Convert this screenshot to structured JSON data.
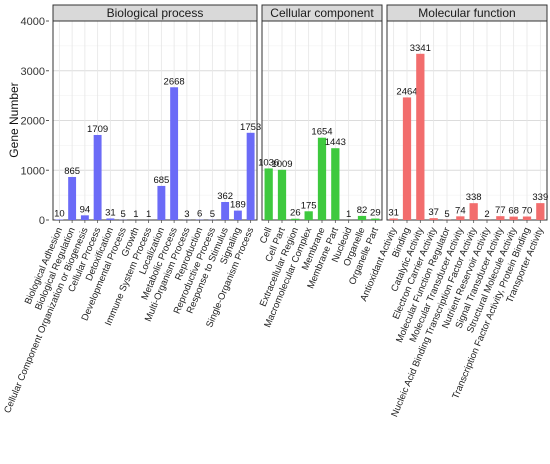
{
  "chart_data": {
    "type": "bar",
    "ylabel": "Gene  Number",
    "ylim": [
      0,
      4000
    ],
    "yticks": [
      0,
      1000,
      2000,
      3000,
      4000
    ],
    "grid": true,
    "legend": "none",
    "panels": [
      {
        "title": "Biological process",
        "color": "#6b6bf7",
        "categories": [
          "Biological Adhesion",
          "Biological Regulation",
          "Cellular Component Organization or Biogenesis",
          "Cellular Process",
          "Detoxification",
          "Developmental Process",
          "Growth",
          "Immune System Process",
          "Localization",
          "Metabolic Process",
          "Multi-Organism Process",
          "Reproduction",
          "Reproductive Process",
          "Response to Stimulus",
          "Signaling",
          "Single-Organism Process"
        ],
        "values": [
          10,
          865,
          94,
          1709,
          31,
          5,
          1,
          1,
          685,
          2668,
          3,
          6,
          5,
          362,
          189,
          1753
        ]
      },
      {
        "title": "Cellular component",
        "color": "#3ec93e",
        "categories": [
          "Cell",
          "Cell Part",
          "Extracellular Region",
          "Macromolecular Complex",
          "Membrane",
          "Membrane Part",
          "Nucleoid",
          "Organelle",
          "Organelle Part"
        ],
        "values": [
          1036,
          1009,
          26,
          175,
          1654,
          1443,
          1,
          82,
          29
        ]
      },
      {
        "title": "Molecular function",
        "color": "#f26d6d",
        "categories": [
          "Antioxidant Activity",
          "Binding",
          "Catalytic Activity",
          "Electron Carrier Activity",
          "Molecular Function Regulator",
          "Molecular Transducer Activity",
          "Nucleic Acid Binding Transcription Factor Activity",
          "Nutrient Reservoir Activity",
          "Signal Transducer Activity",
          "Structural Molecule Activity",
          "Transcription Factor Activity, Protein Binding",
          "Transporter Activity"
        ],
        "values": [
          31,
          2464,
          3341,
          37,
          5,
          74,
          338,
          2,
          77,
          68,
          70,
          339
        ]
      }
    ]
  }
}
